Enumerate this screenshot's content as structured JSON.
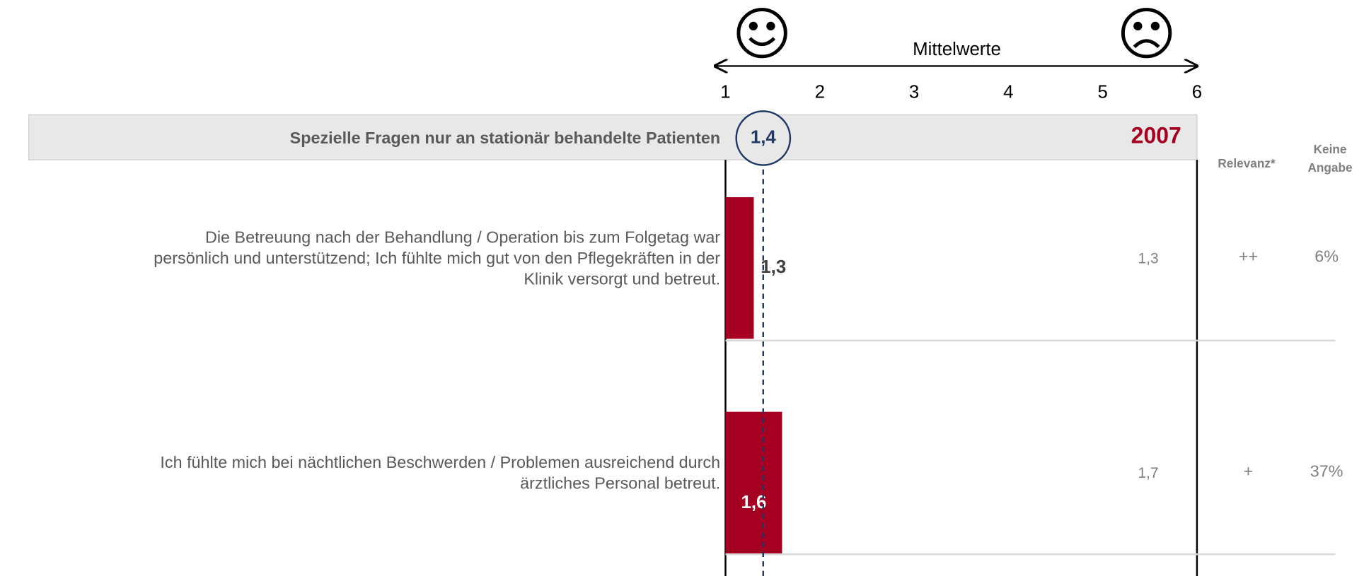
{
  "chart_data": {
    "type": "bar",
    "orientation": "horizontal",
    "axis_label": "Mittelwerte",
    "xlim": [
      1,
      6
    ],
    "xticks": [
      1,
      2,
      3,
      4,
      5,
      6
    ],
    "section_title": "Spezielle Fragen nur an stationär behandelte Patienten",
    "mean": 1.4,
    "mean_label": "1,4",
    "year": "2007",
    "column_headers": [
      "Relevanz*",
      [
        "Keine",
        "Angabe"
      ]
    ],
    "categories": [
      [
        "Die Betreuung nach der Behandlung / Operation bis zum Folgetag war",
        "persönlich und unterstützend; Ich fühlte mich gut von den Pflegekräften in der",
        "Klinik versorgt und betreut."
      ],
      [
        "Ich fühlte mich bei nächtlichen Beschwerden / Problemen ausreichend durch",
        "ärztliches Personal betreut."
      ]
    ],
    "values": [
      1.3,
      1.6
    ],
    "value_labels": [
      "1,3",
      "1,6"
    ],
    "color": "#a50021",
    "previous_values": [
      1.3,
      1.7
    ],
    "previous_value_labels": [
      "1,3",
      "1,7"
    ],
    "relevance": [
      "++",
      "+"
    ],
    "no_answer": [
      6,
      37
    ],
    "no_answer_labels": [
      "6%",
      "37%"
    ]
  }
}
